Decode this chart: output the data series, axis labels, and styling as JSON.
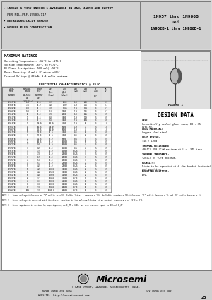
{
  "bg_color": "#d8d8d8",
  "white": "#ffffff",
  "black": "#000000",
  "dark_gray": "#555555",
  "light_gray": "#cccccc",
  "title_left_line1": "  1N962B-1 THRU 1N986B-1 AVAILABLE IN JAN, JANTX AND JANTXV",
  "title_left_line2": "  PER MIL-PRF-19500/117",
  "title_left_line3": "  METALLURGICALLY BONDED",
  "title_left_line4": "  DOUBLE PLUG CONSTRUCTION",
  "title_right_line1": "1N957 thru 1N986B",
  "title_right_line2": "and",
  "title_right_line3": "1N962B-1 thru 1N986B-1",
  "max_ratings_title": "MAXIMUM RATINGS",
  "max_ratings": [
    "Operating Temperature: -65°C to +175°C",
    "Storage Temperature: -65°C to +175°C",
    "DC Power Dissipation: 500 mW @ +50°C",
    "Power Derating: 4 mW / °C above +50°C",
    "Forward Voltage @ 200mA: 1.1 volts maximum"
  ],
  "elec_char_title": "ELECTRICAL CHARACTERISTICS @ 25°C",
  "table_rows": [
    [
      "1N957/B",
      "6.8",
      "37.5",
      "3.5",
      "1000",
      "1.0",
      "200",
      "5",
      "0.1",
      ""
    ],
    [
      "1N958/B",
      "7.5",
      "34.0",
      "4.0",
      "1500",
      "1.0",
      "175",
      "5",
      "0.1",
      ""
    ],
    [
      "1N959/B",
      "8.2",
      "30.5",
      "4.5",
      "1500",
      "1.0",
      "150",
      "5",
      "0.1",
      ""
    ],
    [
      "1N960/B",
      "9.1",
      "27.5",
      "5.0",
      "2000",
      "1.0",
      "135",
      "5",
      "0.1",
      ""
    ],
    [
      "1N961/B",
      "10",
      "25.0",
      "7.0",
      "2000",
      "1.0",
      "125",
      "5",
      "0.5",
      ""
    ],
    [
      "1N962/B",
      "11",
      "22.5",
      "8.0",
      "3000",
      "1.0",
      "110",
      "5",
      "0.5",
      ""
    ],
    [
      "1N963/B",
      "12",
      "20.5",
      "9.0",
      "3000",
      "1.0",
      "100",
      "5",
      "0.5",
      ""
    ],
    [
      "1N964/B",
      "13",
      "19.0",
      "10.0",
      "4000",
      "1.0",
      "90",
      "5",
      "1.0",
      ""
    ],
    [
      "1N965/B",
      "15",
      "16.5",
      "14.0",
      "5000",
      "1.0",
      "75",
      "5",
      "1.0",
      ""
    ],
    [
      "1N966/B",
      "16",
      "15.5",
      "16.0",
      "5000",
      "1.0",
      "70",
      "5",
      "1.0",
      ""
    ],
    [
      "1N967/B",
      "18",
      "13.5",
      "20.0",
      "7000",
      "0.5",
      "65",
      "5",
      "0.5",
      "200"
    ],
    [
      "1N968/B",
      "20",
      "12.5",
      "22.0",
      "7000",
      "0.5",
      "60",
      "5",
      "0.5",
      "200"
    ],
    [
      "1N969/B",
      "22",
      "11.5",
      "23.0",
      "8000",
      "0.5",
      "55",
      "5",
      "0.5",
      "200"
    ],
    [
      "1N970/B",
      "24",
      "10.5",
      "25.0",
      "10000",
      "0.5",
      "50",
      "5",
      "0.5",
      "200"
    ],
    [
      "1N971/B",
      "27",
      "9.5",
      "35.0",
      "10000",
      "0.5",
      "45",
      "5",
      "0.5",
      "200"
    ],
    [
      "1N972/B",
      "30",
      "8.5",
      "40.0",
      "15000",
      "0.5",
      "40",
      "5",
      "0.5",
      "200"
    ],
    [
      "1N973/B",
      "33",
      "7.5",
      "45.0",
      "15000",
      "0.25",
      "35",
      "5",
      "0.5",
      "200"
    ],
    [
      "1N974/B",
      "36",
      "7.0",
      "50.0",
      "20000",
      "0.25",
      "35",
      "5",
      "0.5",
      "200"
    ],
    [
      "1N975/B",
      "39",
      "6.5",
      "60.0",
      "20000",
      "0.25",
      "30",
      "5",
      "0.5",
      "200"
    ],
    [
      "1N976/B",
      "43",
      "5.8",
      "70.0",
      "25000",
      "0.25",
      "30",
      "5",
      "0.5",
      "200"
    ],
    [
      "1N977/B",
      "47",
      "5.3",
      "80.0",
      "25000",
      "0.25",
      "25",
      "5",
      "0.5",
      "200"
    ],
    [
      "1N978/B",
      "51",
      "4.9",
      "95.0",
      "25000",
      "0.25",
      "25",
      "5",
      "0.5",
      "200"
    ],
    [
      "1N979/B",
      "56",
      "4.5",
      "110.0",
      "30000",
      "0.25",
      "20",
      "5",
      "0.5",
      "200"
    ],
    [
      "1N980/B",
      "60",
      "4.2",
      "125.0",
      "30000",
      "0.25",
      "20",
      "5",
      "0.5",
      "200"
    ],
    [
      "1N981/B",
      "62",
      "4.0",
      "150.0",
      "40000",
      "0.25",
      "20",
      "5",
      "0.5",
      "200"
    ],
    [
      "1N982/B",
      "68",
      "3.7",
      "200.0",
      "40000",
      "0.25",
      "15",
      "5",
      "0.5",
      "200"
    ],
    [
      "1N983/B",
      "75",
      "3.3",
      "250.0",
      "40000",
      "0.25",
      "15",
      "5",
      "0.5",
      "200"
    ],
    [
      "1N984/B",
      "82",
      "3.0",
      "400.0",
      "60000",
      "0.25",
      "10",
      "5",
      "0.5",
      "200"
    ],
    [
      "1N985/B",
      "87",
      "2.8",
      "500.0",
      "80000",
      "0.25",
      "10",
      "5",
      "0.5",
      "200"
    ],
    [
      "1N986/B",
      "100",
      "2.5",
      "1000.0",
      "80000",
      "0.25",
      "10",
      "5",
      "0.5",
      "200"
    ]
  ],
  "notes": [
    "NOTE 1   Zener voltage tolerance on \"B\" suffix is ± 5%. Suffix letter A denotes ± 10%. No Suffix denotes ± 20% tolerance. \"C\" suffix denotes ± 2% and \"D\" suffix denotes ± 1%.",
    "NOTE 2   Zener voltage is measured with the device junction in thermal equilibrium at an ambient temperature of 25°C ± 3°C.",
    "NOTE 3   Zener impedance is derived by superimposing on I_ZT a 60Hz rms a.c. current equal to 10% of I_ZT"
  ],
  "design_data_title": "DESIGN DATA",
  "design_data": [
    [
      "CASE:",
      "Hermetically sealed glass case, DO - 35 outline."
    ],
    [
      "LEAD MATERIAL:",
      "Copper clad steel."
    ],
    [
      "LEAD FINISH:",
      "Tin / Lead."
    ],
    [
      "THERMAL RESISTANCE:",
      "(RθJC) 250 °C/W maximum at L = .375 inch."
    ],
    [
      "THERMAL IMPEDANCE:",
      "(ZθJC) 35 °C/W maximum."
    ],
    [
      "POLARITY:",
      "Diode to be operated with the banded (cathode) end positive."
    ],
    [
      "MOUNTING POSITION:",
      "Any."
    ]
  ],
  "footer_logo": "Microsemi",
  "footer_addr": "6 LAKE STREET, LAWRENCE, MASSACHUSETTS  01841",
  "footer_phone": "PHONE (978) 620-2600",
  "footer_fax": "FAX (978) 689-0803",
  "footer_web": "WEBSITE:  http://www.microsemi.com",
  "footer_page": "23"
}
